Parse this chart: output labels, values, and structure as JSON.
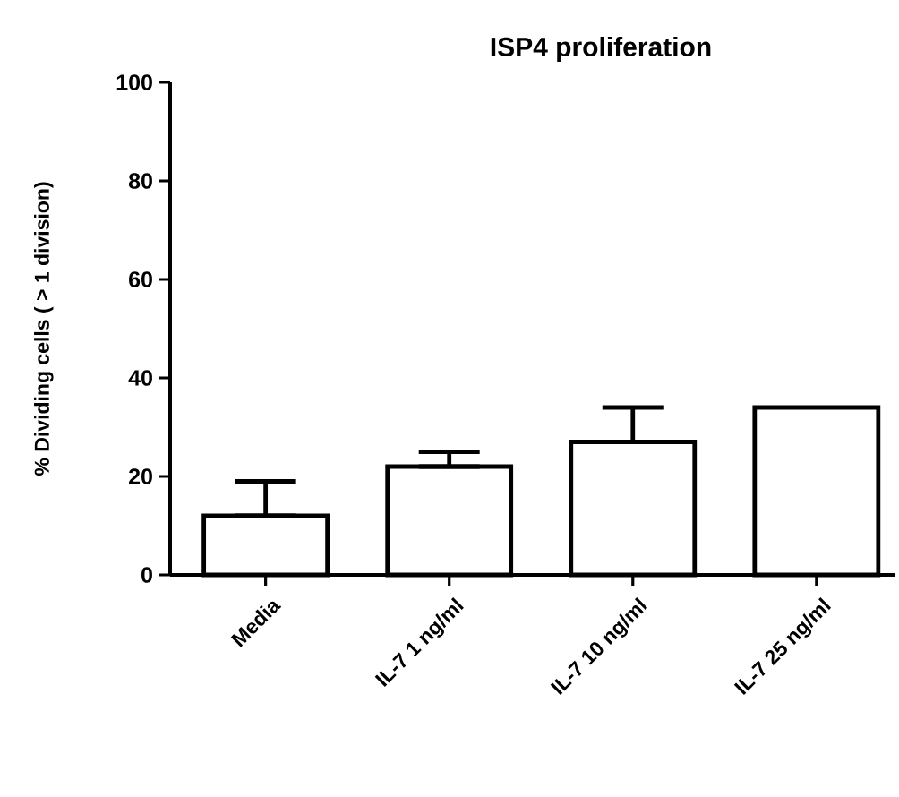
{
  "chart_data": {
    "type": "bar",
    "title": "ISP4 proliferation",
    "ylabel": "% Dividing cells ( > 1 division)",
    "categories": [
      "Media",
      "IL-7 1 ng/ml",
      "IL-7 10 ng/ml",
      "IL-7 25 ng/ml"
    ],
    "values": [
      12,
      22,
      27,
      34
    ],
    "errors": [
      [
        12,
        19
      ],
      [
        22,
        25
      ],
      [
        27,
        34
      ],
      null
    ],
    "color": "#ffffff",
    "ylim": [
      0,
      100
    ],
    "yticks": [
      0,
      20,
      40,
      60,
      80,
      100
    ]
  }
}
